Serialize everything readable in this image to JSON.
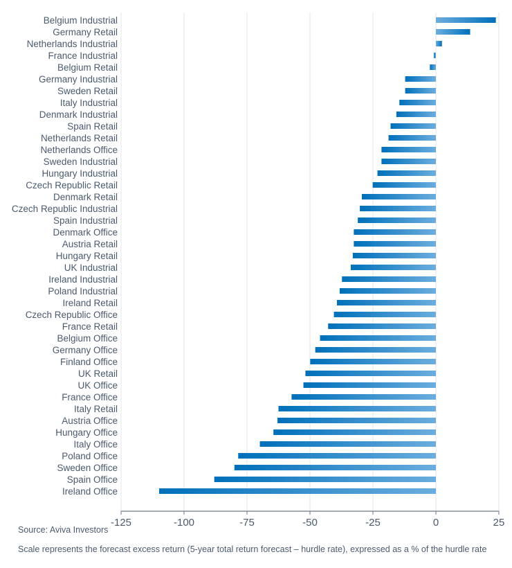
{
  "chart_data": {
    "type": "bar",
    "orientation": "horizontal",
    "categories": [
      "Belgium Industrial",
      "Germany Retail",
      "Netherlands Industrial",
      "France Industrial",
      "Belgium Retail",
      "Germany Industrial",
      "Sweden Retail",
      "Italy Industrial",
      "Denmark Industrial",
      "Spain Retail",
      "Netherlands Retail",
      "Netherlands Office",
      "Sweden Industrial",
      "Hungary Industrial",
      "Czech Republic Retail",
      "Denmark Retail",
      "Czech Republic Industrial",
      "Spain Industrial",
      "Denmark Office",
      "Austria Retail",
      "Hungary Retail",
      "UK Industrial",
      "Ireland Industrial",
      "Poland Industrial",
      "Ireland Retail",
      "Czech Republic Office",
      "France Retail",
      "Belgium Office",
      "Germany Office",
      "Finland Office",
      "UK Retail",
      "UK Office",
      "France Office",
      "Italy Retail",
      "Austria Office",
      "Hungary Office",
      "Italy Office",
      "Poland Office",
      "Sweden Office",
      "Spain Office",
      "Ireland Office"
    ],
    "values": [
      23.8,
      13.6,
      2.4,
      -0.8,
      -2.4,
      -12.2,
      -12.2,
      -14.5,
      -15.7,
      -18,
      -18.8,
      -21.6,
      -21.6,
      -23.2,
      -25.1,
      -29.4,
      -30.2,
      -31,
      -32.6,
      -32.6,
      -33,
      -33.8,
      -37.3,
      -38.2,
      -39.3,
      -40.5,
      -42.8,
      -46,
      -47.9,
      -49.9,
      -51.8,
      -52.6,
      -57.3,
      -62.5,
      -62.9,
      -64.5,
      -69.9,
      -78.5,
      -80,
      -88,
      -109.9
    ],
    "xlim": [
      -125,
      25
    ],
    "xticks": [
      "-125",
      "-100",
      "-75",
      "-50",
      "-25",
      "0",
      "25"
    ],
    "xtick_values": [
      -125,
      -100,
      -75,
      -50,
      -25,
      0,
      25
    ],
    "grid": true,
    "colors": {
      "bar_dark": "#0070ba",
      "bar_light": "#6badde",
      "grid": "#e3e6ea",
      "axis": "#6b7a8c",
      "text": "#4a5a6e"
    }
  },
  "footer": {
    "source": "Source: Aviva Investors",
    "note": "Scale represents the forecast excess return (5-year total return forecast – hurdle rate), expressed as a % of the hurdle rate"
  }
}
